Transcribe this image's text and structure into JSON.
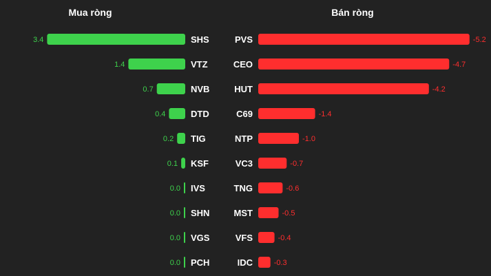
{
  "chart_data": [
    {
      "type": "bar",
      "orientation": "horizontal",
      "title": "Mua ròng",
      "color": "#3ed24c",
      "categories": [
        "SHS",
        "VTZ",
        "NVB",
        "DTD",
        "TIG",
        "KSF",
        "IVS",
        "SHN",
        "VGS",
        "PCH"
      ],
      "values": [
        3.4,
        1.4,
        0.7,
        0.4,
        0.2,
        0.1,
        0.0,
        0.0,
        0.0,
        0.0
      ],
      "value_labels": [
        "3.4",
        "1.4",
        "0.7",
        "0.4",
        "0.2",
        "0.1",
        "0.0",
        "0.0",
        "0.0",
        "0.0"
      ],
      "direction": "leftward"
    },
    {
      "type": "bar",
      "orientation": "horizontal",
      "title": "Bán ròng",
      "color": "#ff2e2e",
      "categories": [
        "PVS",
        "CEO",
        "HUT",
        "C69",
        "NTP",
        "VC3",
        "TNG",
        "MST",
        "VFS",
        "IDC"
      ],
      "values": [
        -5.2,
        -4.7,
        -4.2,
        -1.4,
        -1.0,
        -0.7,
        -0.6,
        -0.5,
        -0.4,
        -0.3
      ],
      "value_labels": [
        "-5.2",
        "-4.7",
        "-4.2",
        "-1.4",
        "-1.0",
        "-0.7",
        "-0.6",
        "-0.5",
        "-0.4",
        "-0.3"
      ],
      "direction": "rightward"
    }
  ]
}
